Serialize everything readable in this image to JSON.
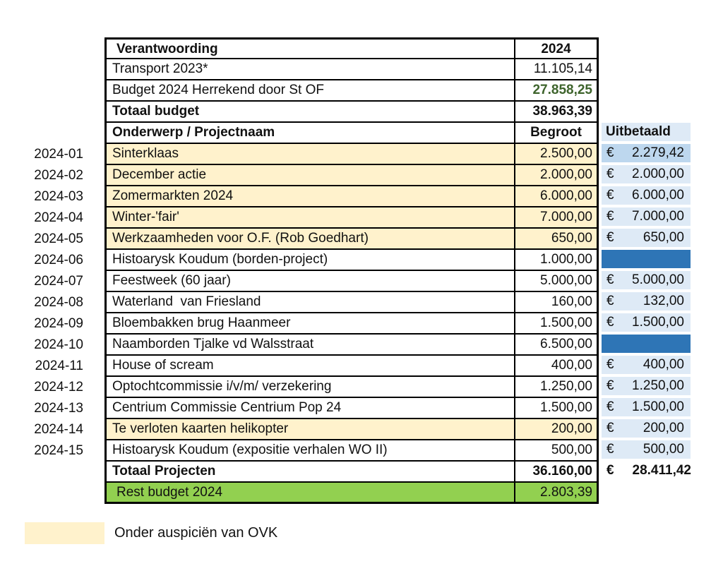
{
  "colors": {
    "ovk_highlight": "#FFF2CC",
    "paid_light_blue": "#DEEAF6",
    "paid_medium_blue": "#BDD7EE",
    "paid_solid_blue": "#2E75B6",
    "rest_green": "#92D050",
    "budget_green_text": "#3E642C"
  },
  "summary": {
    "title": "Verantwoording",
    "year_header": "2024",
    "transport": {
      "label": "Transport 2023*",
      "value": "11.105,14"
    },
    "budget2024": {
      "label": "Budget 2024 Herrekend door St OF",
      "value": "27.858,25"
    },
    "total": {
      "label": "Totaal budget",
      "value": "38.963,39"
    }
  },
  "table": {
    "header": {
      "name": "Onderwerp / Projectnaam",
      "budget": "Begroot",
      "paid": "Uitbetaald"
    },
    "currency_symbol": "€",
    "rows": [
      {
        "id": "2024-01",
        "name": "Sinterklaas",
        "budget": "2.500,00",
        "paid": "2.279,42",
        "ovk": true,
        "paid_fill": "medium"
      },
      {
        "id": "2024-02",
        "name": "December actie",
        "budget": "2.000,00",
        "paid": "2.000,00",
        "ovk": true,
        "paid_fill": "light"
      },
      {
        "id": "2024-03",
        "name": "Zomermarkten 2024",
        "budget": "6.000,00",
        "paid": "6.000,00",
        "ovk": true,
        "paid_fill": "light"
      },
      {
        "id": "2024-04",
        "name": "Winter-'fair'",
        "budget": "7.000,00",
        "paid": "7.000,00",
        "ovk": true,
        "paid_fill": "light"
      },
      {
        "id": "2024-05",
        "name": "Werkzaamheden voor O.F. (Rob Goedhart)",
        "budget": "650,00",
        "paid": "650,00",
        "ovk": true,
        "paid_fill": "light"
      },
      {
        "id": "2024-06",
        "name": "Histoarysk Koudum (borden-project)",
        "budget": "1.000,00",
        "paid": "",
        "ovk": false,
        "paid_fill": "solid"
      },
      {
        "id": "2024-07",
        "name": "Feestweek (60 jaar)",
        "budget": "5.000,00",
        "paid": "5.000,00",
        "ovk": false,
        "paid_fill": "light"
      },
      {
        "id": "2024-08",
        "name": "Waterland  van Friesland",
        "budget": "160,00",
        "paid": "132,00",
        "ovk": false,
        "paid_fill": "light"
      },
      {
        "id": "2024-09",
        "name": "Bloembakken brug Haanmeer",
        "budget": "1.500,00",
        "paid": "1.500,00",
        "ovk": false,
        "paid_fill": "light"
      },
      {
        "id": "2024-10",
        "name": "Naamborden Tjalke vd Walsstraat",
        "budget": "6.500,00",
        "paid": "",
        "ovk": false,
        "paid_fill": "solid"
      },
      {
        "id": "2024-11",
        "name": "House of scream",
        "budget": "400,00",
        "paid": "400,00",
        "ovk": false,
        "paid_fill": "light"
      },
      {
        "id": "2024-12",
        "name": "Optochtcommissie i/v/m/ verzekering",
        "budget": "1.250,00",
        "paid": "1.250,00",
        "ovk": false,
        "paid_fill": "light"
      },
      {
        "id": "2024-13",
        "name": "Centrium Commissie Centrium Pop 24",
        "budget": "1.500,00",
        "paid": "1.500,00",
        "ovk": false,
        "paid_fill": "light"
      },
      {
        "id": "2024-14",
        "name": "Te verloten kaarten helikopter",
        "budget": "200,00",
        "paid": "200,00",
        "ovk": true,
        "paid_fill": "light"
      },
      {
        "id": "2024-15",
        "name": "Histoarysk Koudum (expositie verhalen WO II)",
        "budget": "500,00",
        "paid": "500,00",
        "ovk": false,
        "paid_fill": "light"
      }
    ],
    "totals": {
      "label": "Totaal Projecten",
      "budget": "36.160,00",
      "paid": "28.411,42"
    },
    "rest": {
      "label": "Rest budget 2024",
      "budget": "2.803,39"
    }
  },
  "legend": {
    "text": "Onder auspiciën van OVK"
  }
}
